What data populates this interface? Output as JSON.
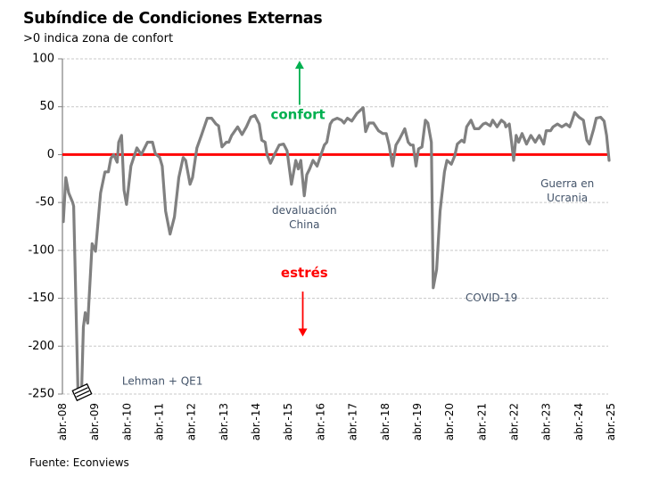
{
  "chart_data": {
    "type": "line",
    "title": "Subíndice de Condiciones Externas",
    "subtitle": ">0 indica zona de confort",
    "source": "Fuente: Econviews",
    "xlabel": "",
    "ylabel": "",
    "ylim": [
      -250,
      100
    ],
    "yticks": [
      100,
      50,
      0,
      -50,
      -100,
      -150,
      -200,
      -250
    ],
    "xlim": [
      2008.25,
      2025.25
    ],
    "xticks": [
      {
        "x": 2008.25,
        "label": "abr.-08"
      },
      {
        "x": 2009.25,
        "label": "abr.-09"
      },
      {
        "x": 2010.25,
        "label": "abr.-10"
      },
      {
        "x": 2011.25,
        "label": "abr.-11"
      },
      {
        "x": 2012.25,
        "label": "abr.-12"
      },
      {
        "x": 2013.25,
        "label": "abr.-13"
      },
      {
        "x": 2014.25,
        "label": "abr.-14"
      },
      {
        "x": 2015.25,
        "label": "abr.-15"
      },
      {
        "x": 2016.25,
        "label": "abr.-16"
      },
      {
        "x": 2017.25,
        "label": "abr.-17"
      },
      {
        "x": 2018.25,
        "label": "abr.-18"
      },
      {
        "x": 2019.25,
        "label": "abr.-19"
      },
      {
        "x": 2020.25,
        "label": "abr.-20"
      },
      {
        "x": 2021.25,
        "label": "abr.-21"
      },
      {
        "x": 2022.25,
        "label": "abr.-22"
      },
      {
        "x": 2023.25,
        "label": "abr.-23"
      },
      {
        "x": 2024.25,
        "label": "abr.-24"
      },
      {
        "x": 2025.25,
        "label": "abr.-25"
      }
    ],
    "grid": true,
    "reference_line": {
      "y": 0,
      "color": "#FF0000"
    },
    "axis_break": {
      "x": 2008.86,
      "y": -250
    },
    "series": [
      {
        "name": "Subíndice de Condiciones Externas",
        "color": "#808080",
        "points": [
          [
            2008.28,
            -70
          ],
          [
            2008.36,
            -24
          ],
          [
            2008.45,
            -40
          ],
          [
            2008.58,
            -50
          ],
          [
            2008.61,
            -54
          ],
          [
            2008.75,
            -250
          ],
          [
            2008.86,
            -250
          ],
          [
            2008.92,
            -180
          ],
          [
            2008.98,
            -165
          ],
          [
            2009.06,
            -176
          ],
          [
            2009.2,
            -93
          ],
          [
            2009.31,
            -101
          ],
          [
            2009.47,
            -40
          ],
          [
            2009.61,
            -18
          ],
          [
            2009.72,
            -18
          ],
          [
            2009.8,
            -4
          ],
          [
            2009.89,
            0
          ],
          [
            2010.0,
            -8
          ],
          [
            2010.05,
            13
          ],
          [
            2010.14,
            20
          ],
          [
            2010.22,
            -37
          ],
          [
            2010.3,
            -52
          ],
          [
            2010.44,
            -12
          ],
          [
            2010.63,
            7
          ],
          [
            2010.77,
            0
          ],
          [
            2010.97,
            13
          ],
          [
            2011.13,
            13
          ],
          [
            2011.22,
            1
          ],
          [
            2011.36,
            -3
          ],
          [
            2011.44,
            -12
          ],
          [
            2011.55,
            -59
          ],
          [
            2011.69,
            -83
          ],
          [
            2011.83,
            -65
          ],
          [
            2011.97,
            -24
          ],
          [
            2012.11,
            -3
          ],
          [
            2012.19,
            -6
          ],
          [
            2012.33,
            -31
          ],
          [
            2012.41,
            -24
          ],
          [
            2012.55,
            7
          ],
          [
            2012.69,
            20
          ],
          [
            2012.88,
            38
          ],
          [
            2013.02,
            38
          ],
          [
            2013.16,
            32
          ],
          [
            2013.24,
            30
          ],
          [
            2013.35,
            8
          ],
          [
            2013.49,
            13
          ],
          [
            2013.57,
            13
          ],
          [
            2013.66,
            20
          ],
          [
            2013.85,
            29
          ],
          [
            2013.99,
            21
          ],
          [
            2014.13,
            29
          ],
          [
            2014.27,
            39
          ],
          [
            2014.4,
            41
          ],
          [
            2014.54,
            32
          ],
          [
            2014.62,
            15
          ],
          [
            2014.73,
            13
          ],
          [
            2014.79,
            0
          ],
          [
            2014.9,
            -9
          ],
          [
            2015.04,
            1
          ],
          [
            2015.18,
            10
          ],
          [
            2015.32,
            11
          ],
          [
            2015.43,
            4
          ],
          [
            2015.57,
            -31
          ],
          [
            2015.71,
            -6
          ],
          [
            2015.79,
            -15
          ],
          [
            2015.87,
            -6
          ],
          [
            2015.98,
            -43
          ],
          [
            2016.06,
            -21
          ],
          [
            2016.15,
            -15
          ],
          [
            2016.26,
            -6
          ],
          [
            2016.39,
            -12
          ],
          [
            2016.48,
            -3
          ],
          [
            2016.62,
            10
          ],
          [
            2016.7,
            13
          ],
          [
            2016.81,
            32
          ],
          [
            2016.89,
            36
          ],
          [
            2017.03,
            38
          ],
          [
            2017.17,
            36
          ],
          [
            2017.25,
            33
          ],
          [
            2017.36,
            38
          ],
          [
            2017.5,
            35
          ],
          [
            2017.66,
            43
          ],
          [
            2017.86,
            49
          ],
          [
            2017.94,
            24
          ],
          [
            2018.05,
            33
          ],
          [
            2018.19,
            33
          ],
          [
            2018.35,
            25
          ],
          [
            2018.49,
            22
          ],
          [
            2018.6,
            22
          ],
          [
            2018.69,
            10
          ],
          [
            2018.8,
            -12
          ],
          [
            2018.91,
            10
          ],
          [
            2019.02,
            16
          ],
          [
            2019.19,
            27
          ],
          [
            2019.3,
            13
          ],
          [
            2019.38,
            10
          ],
          [
            2019.46,
            10
          ],
          [
            2019.55,
            -12
          ],
          [
            2019.63,
            6
          ],
          [
            2019.74,
            8
          ],
          [
            2019.85,
            36
          ],
          [
            2019.93,
            33
          ],
          [
            2020.04,
            13
          ],
          [
            2020.1,
            -139
          ],
          [
            2020.21,
            -120
          ],
          [
            2020.32,
            -59
          ],
          [
            2020.46,
            -18
          ],
          [
            2020.54,
            -6
          ],
          [
            2020.68,
            -10
          ],
          [
            2020.79,
            -1
          ],
          [
            2020.87,
            11
          ],
          [
            2021.01,
            15
          ],
          [
            2021.09,
            13
          ],
          [
            2021.17,
            29
          ],
          [
            2021.31,
            36
          ],
          [
            2021.42,
            27
          ],
          [
            2021.56,
            27
          ],
          [
            2021.7,
            32
          ],
          [
            2021.78,
            33
          ],
          [
            2021.92,
            30
          ],
          [
            2022.0,
            36
          ],
          [
            2022.14,
            29
          ],
          [
            2022.28,
            36
          ],
          [
            2022.39,
            33
          ],
          [
            2022.42,
            29
          ],
          [
            2022.53,
            32
          ],
          [
            2022.61,
            11
          ],
          [
            2022.67,
            -6
          ],
          [
            2022.75,
            20
          ],
          [
            2022.83,
            13
          ],
          [
            2022.94,
            22
          ],
          [
            2023.08,
            11
          ],
          [
            2023.22,
            20
          ],
          [
            2023.36,
            13
          ],
          [
            2023.49,
            20
          ],
          [
            2023.63,
            11
          ],
          [
            2023.71,
            25
          ],
          [
            2023.85,
            25
          ],
          [
            2023.93,
            29
          ],
          [
            2024.07,
            32
          ],
          [
            2024.21,
            29
          ],
          [
            2024.35,
            32
          ],
          [
            2024.46,
            29
          ],
          [
            2024.54,
            36
          ],
          [
            2024.62,
            44
          ],
          [
            2024.76,
            39
          ],
          [
            2024.9,
            36
          ],
          [
            2025.01,
            15
          ],
          [
            2025.09,
            11
          ],
          [
            2025.23,
            27
          ],
          [
            2025.31,
            38
          ],
          [
            2025.45,
            39
          ],
          [
            2025.56,
            35
          ],
          [
            2025.64,
            20
          ],
          [
            2025.72,
            -6
          ]
        ]
      }
    ],
    "annotations": [
      {
        "text": "Lehman + QE1",
        "x": 2011.35,
        "y": -240
      },
      {
        "text": "devaluación",
        "x": 2015.75,
        "y": -62
      },
      {
        "text": "China",
        "x": 2015.75,
        "y": -77
      },
      {
        "text": "COVID-19",
        "x": 2021.55,
        "y": -153
      },
      {
        "text": "Guerra en",
        "x": 2023.9,
        "y": -34
      },
      {
        "text": "Ucrania",
        "x": 2023.9,
        "y": -49
      },
      {
        "text": "confort",
        "x": 2015.55,
        "y": 37,
        "kind": "confort"
      },
      {
        "text": "estrés",
        "x": 2015.75,
        "y": -128,
        "kind": "estres"
      }
    ],
    "arrows": [
      {
        "direction": "up",
        "x": 2015.6,
        "from": 52,
        "to": 98,
        "color": "#00B050"
      },
      {
        "direction": "down",
        "x": 2015.7,
        "from": -143,
        "to": -190,
        "color": "#FF0000"
      }
    ]
  }
}
